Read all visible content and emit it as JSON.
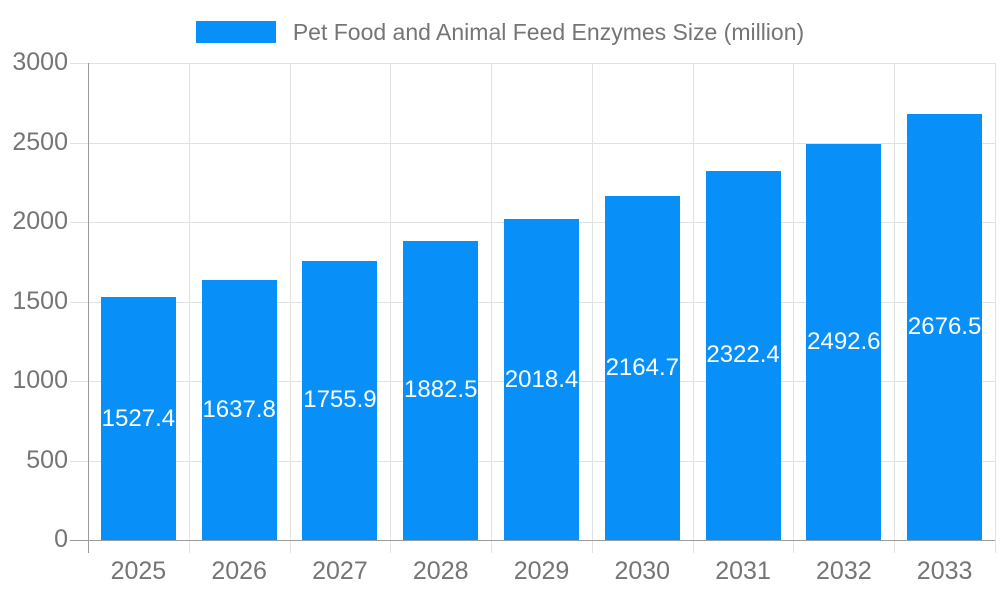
{
  "legend": {
    "label": "Pet Food and Animal Feed Enzymes Size (million)"
  },
  "chart_data": {
    "type": "bar",
    "title": "Pet Food and Animal Feed Enzymes Size (million)",
    "categories": [
      "2025",
      "2026",
      "2027",
      "2028",
      "2029",
      "2030",
      "2031",
      "2032",
      "2033"
    ],
    "values": [
      1527.4,
      1637.8,
      1755.9,
      1882.5,
      2018.4,
      2164.7,
      2322.4,
      2492.6,
      2676.5
    ],
    "xlabel": "",
    "ylabel": "",
    "ylim": [
      0,
      3000
    ],
    "yticks": [
      0,
      500,
      1000,
      1500,
      2000,
      2500,
      3000
    ],
    "grid": true,
    "legend_position": "top-center",
    "value_labels_inside_bars": true,
    "colors": {
      "bar": "#0890f8",
      "grid": "#e2e2e2",
      "axis_line": "#9b9b9b",
      "axis_text": "#757575",
      "value_label": "#ffffff",
      "background": "#ffffff"
    }
  }
}
